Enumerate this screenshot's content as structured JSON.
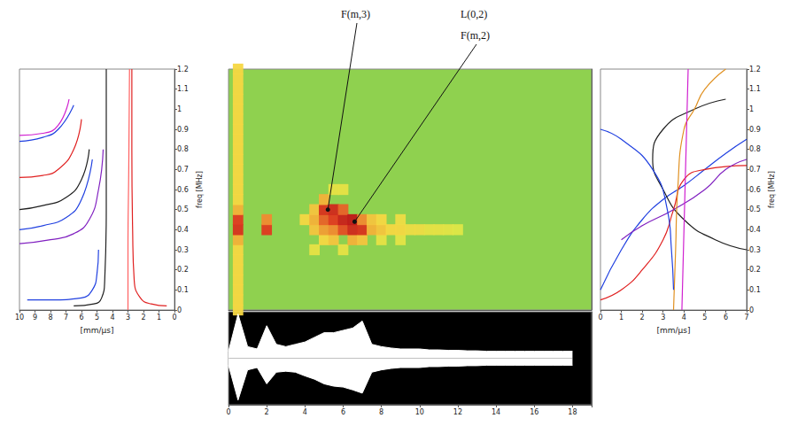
{
  "chart_data": [
    {
      "type": "line",
      "xlabel": "[mm/µs]",
      "ylabel": "freq [MHz]",
      "xlim": [
        0,
        10
      ],
      "xticks": [
        0,
        1,
        2,
        3,
        4,
        5,
        6,
        7,
        8,
        9,
        10
      ],
      "ylim": [
        0,
        1.2
      ],
      "yticks": [
        0,
        0.1,
        0.2,
        0.3,
        0.4,
        0.5,
        0.6,
        0.7,
        0.8,
        0.9,
        1,
        1.1,
        1.2
      ],
      "series": [
        {
          "color": "#e02020",
          "x": [
            0.5,
            1.5,
            2.2,
            2.6,
            2.7,
            2.75,
            2.75
          ],
          "values": [
            0.02,
            0.03,
            0.06,
            0.15,
            0.4,
            0.8,
            1.2
          ]
        },
        {
          "color": "#ff6060",
          "x": [
            3.0,
            3.0,
            2.95,
            2.9
          ],
          "values": [
            0.0,
            0.3,
            0.7,
            1.2
          ]
        },
        {
          "color": "#202020",
          "x": [
            6.5,
            5.2,
            4.7,
            4.5,
            4.4,
            4.4
          ],
          "values": [
            0.02,
            0.03,
            0.06,
            0.15,
            0.5,
            1.2
          ]
        },
        {
          "color": "#2040e0",
          "x": [
            9.5,
            8,
            6,
            5.3,
            5.0,
            4.9
          ],
          "values": [
            0.05,
            0.05,
            0.06,
            0.1,
            0.18,
            0.3
          ]
        },
        {
          "color": "#8020c0",
          "x": [
            10,
            8,
            6.5,
            5.5,
            4.9,
            4.6
          ],
          "values": [
            0.33,
            0.35,
            0.38,
            0.45,
            0.6,
            0.8
          ]
        },
        {
          "color": "#2040e0",
          "x": [
            10,
            8.5,
            7,
            6,
            5.3
          ],
          "values": [
            0.4,
            0.42,
            0.46,
            0.55,
            0.75
          ]
        },
        {
          "color": "#202020",
          "x": [
            10,
            8.5,
            7,
            6,
            5.5
          ],
          "values": [
            0.5,
            0.52,
            0.56,
            0.65,
            0.8
          ]
        },
        {
          "color": "#e02020",
          "x": [
            10,
            8.5,
            7.5,
            6.5,
            6
          ],
          "values": [
            0.66,
            0.67,
            0.7,
            0.8,
            0.95
          ]
        },
        {
          "color": "#2040e0",
          "x": [
            10,
            8.5,
            7.5,
            6.5
          ],
          "values": [
            0.84,
            0.86,
            0.9,
            1.02
          ]
        },
        {
          "color": "#d020d0",
          "x": [
            10,
            8.5,
            7.5,
            6.8
          ],
          "values": [
            0.87,
            0.88,
            0.92,
            1.05
          ]
        }
      ]
    },
    {
      "type": "heatmap",
      "xlim": [
        0,
        19
      ],
      "ylim": [
        0,
        1.2
      ],
      "tick_labels": false,
      "cell_size": [
        0.5,
        0.05
      ],
      "value_range": [
        0,
        1
      ],
      "cells": [
        [
          0.5,
          0,
          0.4
        ],
        [
          0.5,
          0.05,
          0.4
        ],
        [
          0.5,
          0.1,
          0.4
        ],
        [
          0.5,
          0.15,
          0.4
        ],
        [
          0.5,
          0.2,
          0.4
        ],
        [
          0.5,
          0.25,
          0.4
        ],
        [
          0.5,
          0.3,
          0.4
        ],
        [
          0.5,
          0.35,
          0.5
        ],
        [
          0.5,
          0.4,
          0.85
        ],
        [
          0.5,
          0.45,
          0.8
        ],
        [
          0.5,
          0.5,
          0.5
        ],
        [
          0.5,
          0.55,
          0.4
        ],
        [
          0.5,
          0.6,
          0.4
        ],
        [
          0.5,
          0.65,
          0.4
        ],
        [
          0.5,
          0.7,
          0.4
        ],
        [
          0.5,
          0.75,
          0.4
        ],
        [
          0.5,
          0.8,
          0.4
        ],
        [
          0.5,
          0.85,
          0.4
        ],
        [
          0.5,
          0.9,
          0.4
        ],
        [
          0.5,
          0.95,
          0.4
        ],
        [
          0.5,
          1,
          0.4
        ],
        [
          0.5,
          1.05,
          0.4
        ],
        [
          0.5,
          1.1,
          0.4
        ],
        [
          0.5,
          1.15,
          0.4
        ],
        [
          0.5,
          1.2,
          0.4
        ],
        [
          2,
          0.4,
          0.8
        ],
        [
          2,
          0.45,
          0.6
        ],
        [
          4,
          0.45,
          0.4
        ],
        [
          4.5,
          0.3,
          0.3
        ],
        [
          4.5,
          0.4,
          0.45
        ],
        [
          4.5,
          0.45,
          0.5
        ],
        [
          4.5,
          0.5,
          0.45
        ],
        [
          5,
          0.35,
          0.4
        ],
        [
          5,
          0.4,
          0.55
        ],
        [
          5,
          0.45,
          0.7
        ],
        [
          5,
          0.5,
          0.85
        ],
        [
          5,
          0.55,
          0.5
        ],
        [
          5.5,
          0.35,
          0.45
        ],
        [
          5.5,
          0.4,
          0.6
        ],
        [
          5.5,
          0.45,
          0.8
        ],
        [
          5.5,
          0.5,
          0.9
        ],
        [
          5.5,
          0.6,
          0.3
        ],
        [
          6,
          0.3,
          0.3
        ],
        [
          6,
          0.4,
          0.75
        ],
        [
          6,
          0.45,
          0.95
        ],
        [
          6,
          0.5,
          0.7
        ],
        [
          6,
          0.6,
          0.3
        ],
        [
          6.5,
          0.35,
          0.5
        ],
        [
          6.5,
          0.4,
          0.9
        ],
        [
          6.5,
          0.45,
          1
        ],
        [
          7,
          0.35,
          0.45
        ],
        [
          7,
          0.4,
          0.85
        ],
        [
          7,
          0.45,
          0.6
        ],
        [
          7.5,
          0.4,
          0.5
        ],
        [
          7.5,
          0.45,
          0.45
        ],
        [
          8,
          0.35,
          0.3
        ],
        [
          8,
          0.4,
          0.45
        ],
        [
          8,
          0.45,
          0.4
        ],
        [
          8.5,
          0.4,
          0.4
        ],
        [
          9,
          0.35,
          0.28
        ],
        [
          9,
          0.4,
          0.4
        ],
        [
          9,
          0.45,
          0.35
        ],
        [
          9.5,
          0.4,
          0.35
        ],
        [
          10,
          0.4,
          0.35
        ],
        [
          10.5,
          0.4,
          0.3
        ],
        [
          11,
          0.4,
          0.3
        ],
        [
          11.5,
          0.4,
          0.28
        ],
        [
          12,
          0.4,
          0.25
        ]
      ],
      "annotations": [
        {
          "text": "F(m,3)",
          "x": 5.2,
          "y": 0.5
        },
        {
          "text": "L(0,2)"
        },
        {
          "text": "F(m,2)",
          "x": 6.6,
          "y": 0.44
        }
      ]
    },
    {
      "type": "area",
      "xlim": [
        0,
        19
      ],
      "xticks": [
        0,
        2,
        4,
        6,
        8,
        10,
        12,
        14,
        16,
        18
      ],
      "ylim": [
        -1,
        1
      ],
      "tick_labels": "x",
      "color": "#ffffff",
      "x": [
        0,
        0.5,
        1,
        1.5,
        2,
        2.5,
        3,
        3.5,
        4,
        4.5,
        5,
        5.5,
        6,
        6.5,
        7,
        7.5,
        8,
        8.5,
        9,
        9.5,
        10,
        10.5,
        11,
        11.5,
        12,
        12.5,
        13,
        13.5,
        14,
        14.5,
        15,
        15.5,
        16,
        16.5,
        17,
        17.5,
        18
      ],
      "series": [
        {
          "values": [
            0.15,
            0.95,
            0.25,
            0.2,
            0.7,
            0.3,
            0.25,
            0.3,
            0.35,
            0.45,
            0.55,
            0.55,
            0.6,
            0.65,
            0.8,
            0.3,
            0.25,
            0.22,
            0.2,
            0.2,
            0.2,
            0.18,
            0.18,
            0.17,
            0.17,
            0.16,
            0.16,
            0.15,
            0.15,
            0.15,
            0.15,
            0.15,
            0.15,
            0.15,
            0.15,
            0.15,
            0.15
          ]
        },
        {
          "values": [
            -0.15,
            -0.9,
            -0.25,
            -0.2,
            -0.55,
            -0.3,
            -0.28,
            -0.3,
            -0.38,
            -0.45,
            -0.55,
            -0.6,
            -0.62,
            -0.68,
            -0.75,
            -0.3,
            -0.25,
            -0.22,
            -0.2,
            -0.2,
            -0.2,
            -0.18,
            -0.18,
            -0.17,
            -0.17,
            -0.16,
            -0.16,
            -0.15,
            -0.15,
            -0.15,
            -0.15,
            -0.15,
            -0.15,
            -0.15,
            -0.15,
            -0.15,
            -0.15
          ]
        }
      ]
    },
    {
      "type": "line",
      "xlabel": "[mm/µs]",
      "ylabel": "freq [MHz]",
      "xlim": [
        0,
        7
      ],
      "xticks": [
        0,
        1,
        2,
        3,
        4,
        5,
        6,
        7
      ],
      "ylim": [
        0,
        1.2
      ],
      "yticks": [
        0,
        0.1,
        0.2,
        0.3,
        0.4,
        0.5,
        0.6,
        0.7,
        0.8,
        0.9,
        1,
        1.1,
        1.2
      ],
      "series": [
        {
          "color": "#2040e0",
          "x": [
            0,
            1,
            2,
            3,
            4,
            5,
            6,
            7
          ],
          "values": [
            0.1,
            0.3,
            0.45,
            0.55,
            0.62,
            0.7,
            0.78,
            0.85
          ]
        },
        {
          "color": "#202020",
          "x": [
            7,
            5.5,
            4,
            3,
            2.5,
            3,
            4.5,
            6
          ],
          "values": [
            0.3,
            0.35,
            0.45,
            0.6,
            0.75,
            0.9,
            1.0,
            1.05
          ]
        },
        {
          "color": "#e02020",
          "x": [
            0,
            1,
            2,
            3,
            3.5,
            4,
            5,
            7
          ],
          "values": [
            0.05,
            0.1,
            0.2,
            0.35,
            0.5,
            0.65,
            0.7,
            0.72
          ]
        },
        {
          "color": "#8020c0",
          "x": [
            1,
            2,
            3.5,
            5,
            6,
            7
          ],
          "values": [
            0.35,
            0.42,
            0.5,
            0.6,
            0.7,
            0.75
          ]
        },
        {
          "color": "#e09020",
          "x": [
            3.5,
            3.6,
            3.7,
            4,
            4.5,
            5,
            6
          ],
          "values": [
            0,
            0.3,
            0.6,
            0.9,
            1.0,
            1.1,
            1.2
          ]
        },
        {
          "color": "#2040e0",
          "x": [
            0,
            1,
            2.5,
            3.2,
            3.4,
            3.5
          ],
          "values": [
            0.9,
            0.85,
            0.7,
            0.5,
            0.3,
            0.1
          ]
        },
        {
          "color": "#d020d0",
          "x": [
            3.9,
            4,
            4.1,
            4.2
          ],
          "values": [
            0,
            0.4,
            0.8,
            1.2
          ]
        }
      ]
    }
  ]
}
